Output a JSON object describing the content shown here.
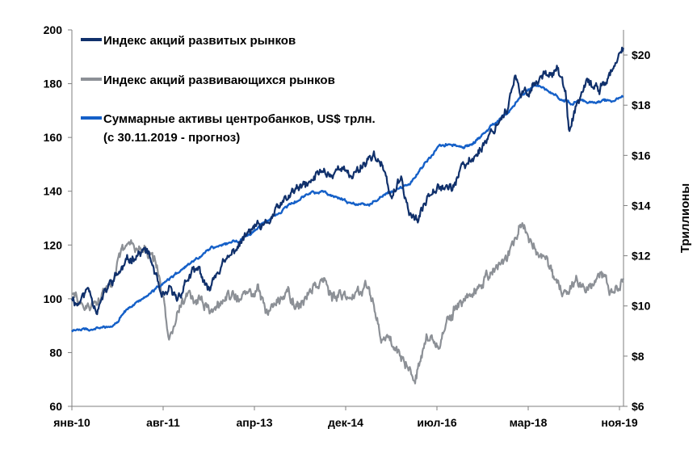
{
  "chart_data": {
    "type": "line",
    "title": "",
    "x_ticks": [
      "янв-10",
      "авг-11",
      "апр-13",
      "дек-14",
      "июл-16",
      "мар-18",
      "ноя-19"
    ],
    "x_range": [
      2010.0,
      2019.95
    ],
    "left_axis": {
      "range": [
        60,
        200
      ],
      "ticks": [
        "60",
        "80",
        "100",
        "120",
        "140",
        "160",
        "180",
        "200"
      ]
    },
    "right_axis": {
      "title": "Триллионы",
      "range": [
        6,
        21
      ],
      "ticks": [
        "$6",
        "$8",
        "$10",
        "$12",
        "$14",
        "$16",
        "$18",
        "$20"
      ]
    },
    "legend": [
      {
        "label": "Индекс акций развитых рынков",
        "color": "#10306b"
      },
      {
        "label": "Индекс акций развивающихся рынков",
        "color": "#8c9096"
      },
      {
        "label": "Суммарные активы центробанков, US$ трлн.",
        "label2": "(с 30.11.2019 - прогноз)",
        "color": "#1560c8"
      }
    ],
    "series": [
      {
        "name": "Индекс акций развитых рынков",
        "axis": "left",
        "color": "#10306b",
        "noise": 1.6,
        "seed": 11,
        "x": [
          2010.0,
          2010.1,
          2010.3,
          2010.45,
          2010.7,
          2010.9,
          2011.1,
          2011.35,
          2011.5,
          2011.62,
          2011.75,
          2011.9,
          2012.1,
          2012.3,
          2012.45,
          2012.6,
          2012.8,
          2013.0,
          2013.3,
          2013.45,
          2013.7,
          2014.0,
          2014.3,
          2014.5,
          2014.7,
          2014.85,
          2015.0,
          2015.2,
          2015.45,
          2015.6,
          2015.75,
          2015.95,
          2016.1,
          2016.25,
          2016.45,
          2016.6,
          2016.85,
          2017.0,
          2017.3,
          2017.6,
          2017.85,
          2018.0,
          2018.1,
          2018.25,
          2018.5,
          2018.75,
          2018.9,
          2018.97,
          2019.1,
          2019.3,
          2019.5,
          2019.7,
          2019.85,
          2019.95
        ],
        "y": [
          101,
          98,
          104,
          96,
          106,
          111,
          116,
          118,
          110,
          99,
          103,
          100,
          108,
          111,
          102,
          110,
          114,
          120,
          127,
          126,
          133,
          140,
          143,
          148,
          146,
          150,
          145,
          149,
          154,
          149,
          138,
          144,
          131,
          129,
          140,
          143,
          141,
          147,
          154,
          163,
          171,
          182,
          175,
          178,
          183,
          186,
          177,
          161,
          172,
          180,
          178,
          183,
          188,
          194
        ]
      },
      {
        "name": "Индекс акций развивающихся рынков",
        "axis": "left",
        "color": "#8c9096",
        "noise": 2.0,
        "seed": 29,
        "x": [
          2010.0,
          2010.1,
          2010.3,
          2010.5,
          2010.75,
          2010.9,
          2011.1,
          2011.3,
          2011.5,
          2011.65,
          2011.75,
          2011.9,
          2012.1,
          2012.3,
          2012.5,
          2012.7,
          2012.9,
          2013.1,
          2013.35,
          2013.5,
          2013.7,
          2013.9,
          2014.1,
          2014.3,
          2014.55,
          2014.7,
          2014.9,
          2015.1,
          2015.3,
          2015.45,
          2015.6,
          2015.75,
          2015.9,
          2016.05,
          2016.2,
          2016.4,
          2016.6,
          2016.8,
          2017.0,
          2017.3,
          2017.6,
          2017.9,
          2018.0,
          2018.1,
          2018.3,
          2018.55,
          2018.75,
          2018.9,
          2019.1,
          2019.3,
          2019.55,
          2019.75,
          2019.95
        ],
        "y": [
          102,
          99,
          96,
          100,
          108,
          117,
          121,
          118,
          114,
          98,
          87,
          96,
          101,
          99,
          95,
          98,
          102,
          100,
          104,
          95,
          100,
          102,
          96,
          104,
          108,
          100,
          100,
          102,
          106,
          98,
          84,
          86,
          80,
          76,
          72,
          86,
          83,
          92,
          98,
          104,
          110,
          116,
          124,
          128,
          120,
          115,
          104,
          100,
          108,
          104,
          110,
          102,
          109
        ]
      },
      {
        "name": "Суммарные активы центробанков, US$ трлн.",
        "axis": "right",
        "color": "#1560c8",
        "noise": 0.05,
        "seed": 47,
        "x": [
          2010.0,
          2010.3,
          2010.5,
          2010.7,
          2010.85,
          2011.0,
          2011.3,
          2011.6,
          2011.9,
          2012.2,
          2012.5,
          2012.8,
          2013.0,
          2013.3,
          2013.6,
          2013.9,
          2014.2,
          2014.5,
          2014.7,
          2014.9,
          2015.1,
          2015.3,
          2015.5,
          2015.7,
          2015.9,
          2016.1,
          2016.3,
          2016.6,
          2016.8,
          2017.0,
          2017.2,
          2017.4,
          2017.7,
          2017.9,
          2018.05,
          2018.2,
          2018.4,
          2018.6,
          2018.8,
          2019.0,
          2019.2,
          2019.4,
          2019.6,
          2019.8,
          2019.95
        ],
        "y": [
          9.05,
          9.05,
          9.1,
          9.2,
          9.45,
          9.9,
          10.3,
          10.8,
          11.3,
          11.8,
          12.3,
          12.5,
          12.6,
          13.0,
          13.5,
          14.0,
          14.4,
          14.6,
          14.4,
          14.2,
          14.1,
          14.0,
          14.2,
          14.5,
          14.7,
          14.9,
          15.5,
          16.3,
          16.5,
          16.3,
          16.4,
          16.8,
          17.4,
          17.8,
          18.2,
          18.6,
          18.8,
          18.5,
          18.3,
          18.1,
          18.2,
          18.1,
          18.2,
          18.2,
          18.35
        ]
      }
    ]
  }
}
